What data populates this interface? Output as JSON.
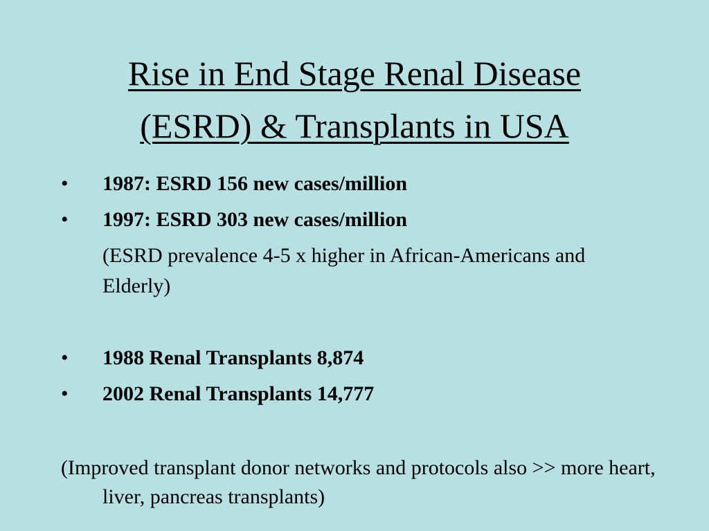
{
  "title": {
    "line1": "Rise in End Stage Renal Disease",
    "line2": "(ESRD) & Transplants in USA"
  },
  "bullets": [
    {
      "marker": "•",
      "text": "1987: ESRD 156 new cases/million"
    },
    {
      "marker": "•",
      "text": "1997: ESRD 303 new cases/million"
    },
    {
      "marker": "•",
      "text": "1988 Renal Transplants 8,874"
    },
    {
      "marker": "•",
      "text": "2002 Renal Transplants 14,777"
    }
  ],
  "note": "(ESRD prevalence 4-5 x higher in African-Americans and Elderly)",
  "footnote": "(Improved transplant donor networks and protocols also >> more heart, liver, pancreas transplants)",
  "colors": {
    "background": "#b8dfe2",
    "text": "#000000"
  }
}
